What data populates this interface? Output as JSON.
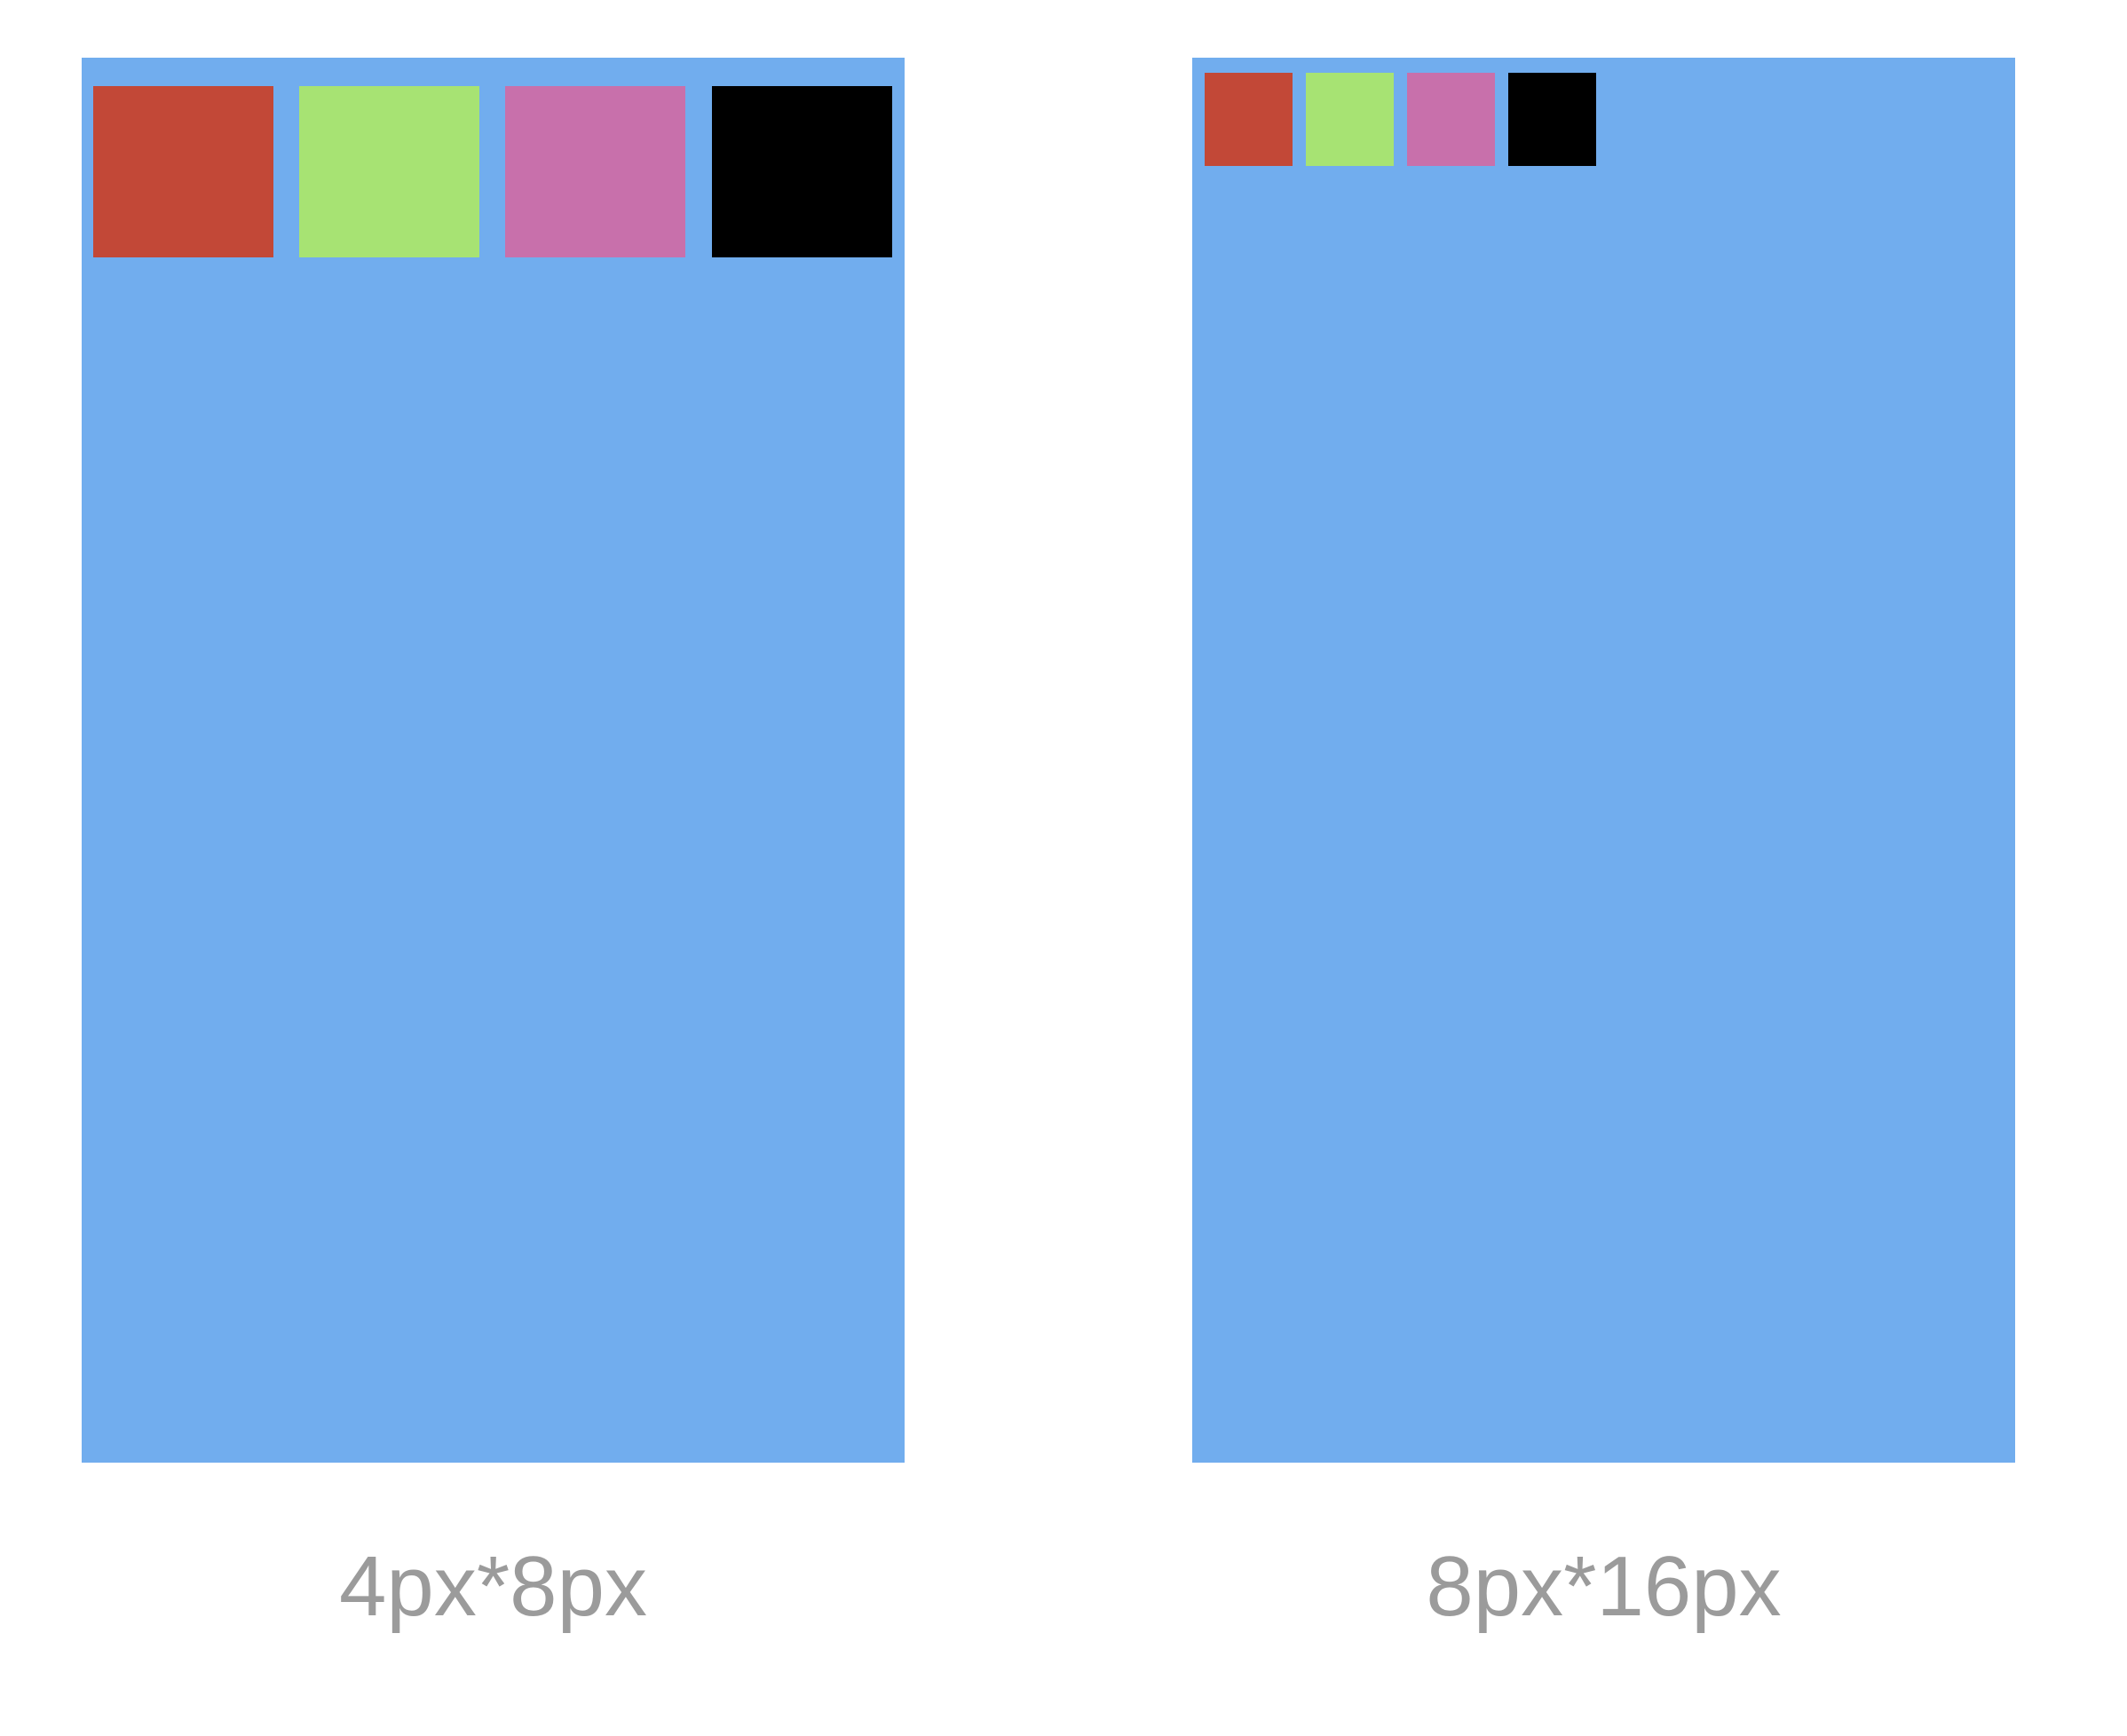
{
  "colors": {
    "background": "#ffffff",
    "screen": "#71adee",
    "caption_text": "#9b9b9b"
  },
  "panels": [
    {
      "caption": "4px*8px",
      "swatches": [
        {
          "color": "#c24837",
          "icon": "red-square"
        },
        {
          "color": "#a7e373",
          "icon": "green-square"
        },
        {
          "color": "#c870ab",
          "icon": "pink-square"
        },
        {
          "color": "#000000",
          "icon": "black-square"
        }
      ]
    },
    {
      "caption": "8px*16px",
      "swatches": [
        {
          "color": "#c24837",
          "icon": "red-square"
        },
        {
          "color": "#a7e373",
          "icon": "green-square"
        },
        {
          "color": "#c870ab",
          "icon": "pink-square"
        },
        {
          "color": "#000000",
          "icon": "black-square"
        }
      ]
    }
  ]
}
